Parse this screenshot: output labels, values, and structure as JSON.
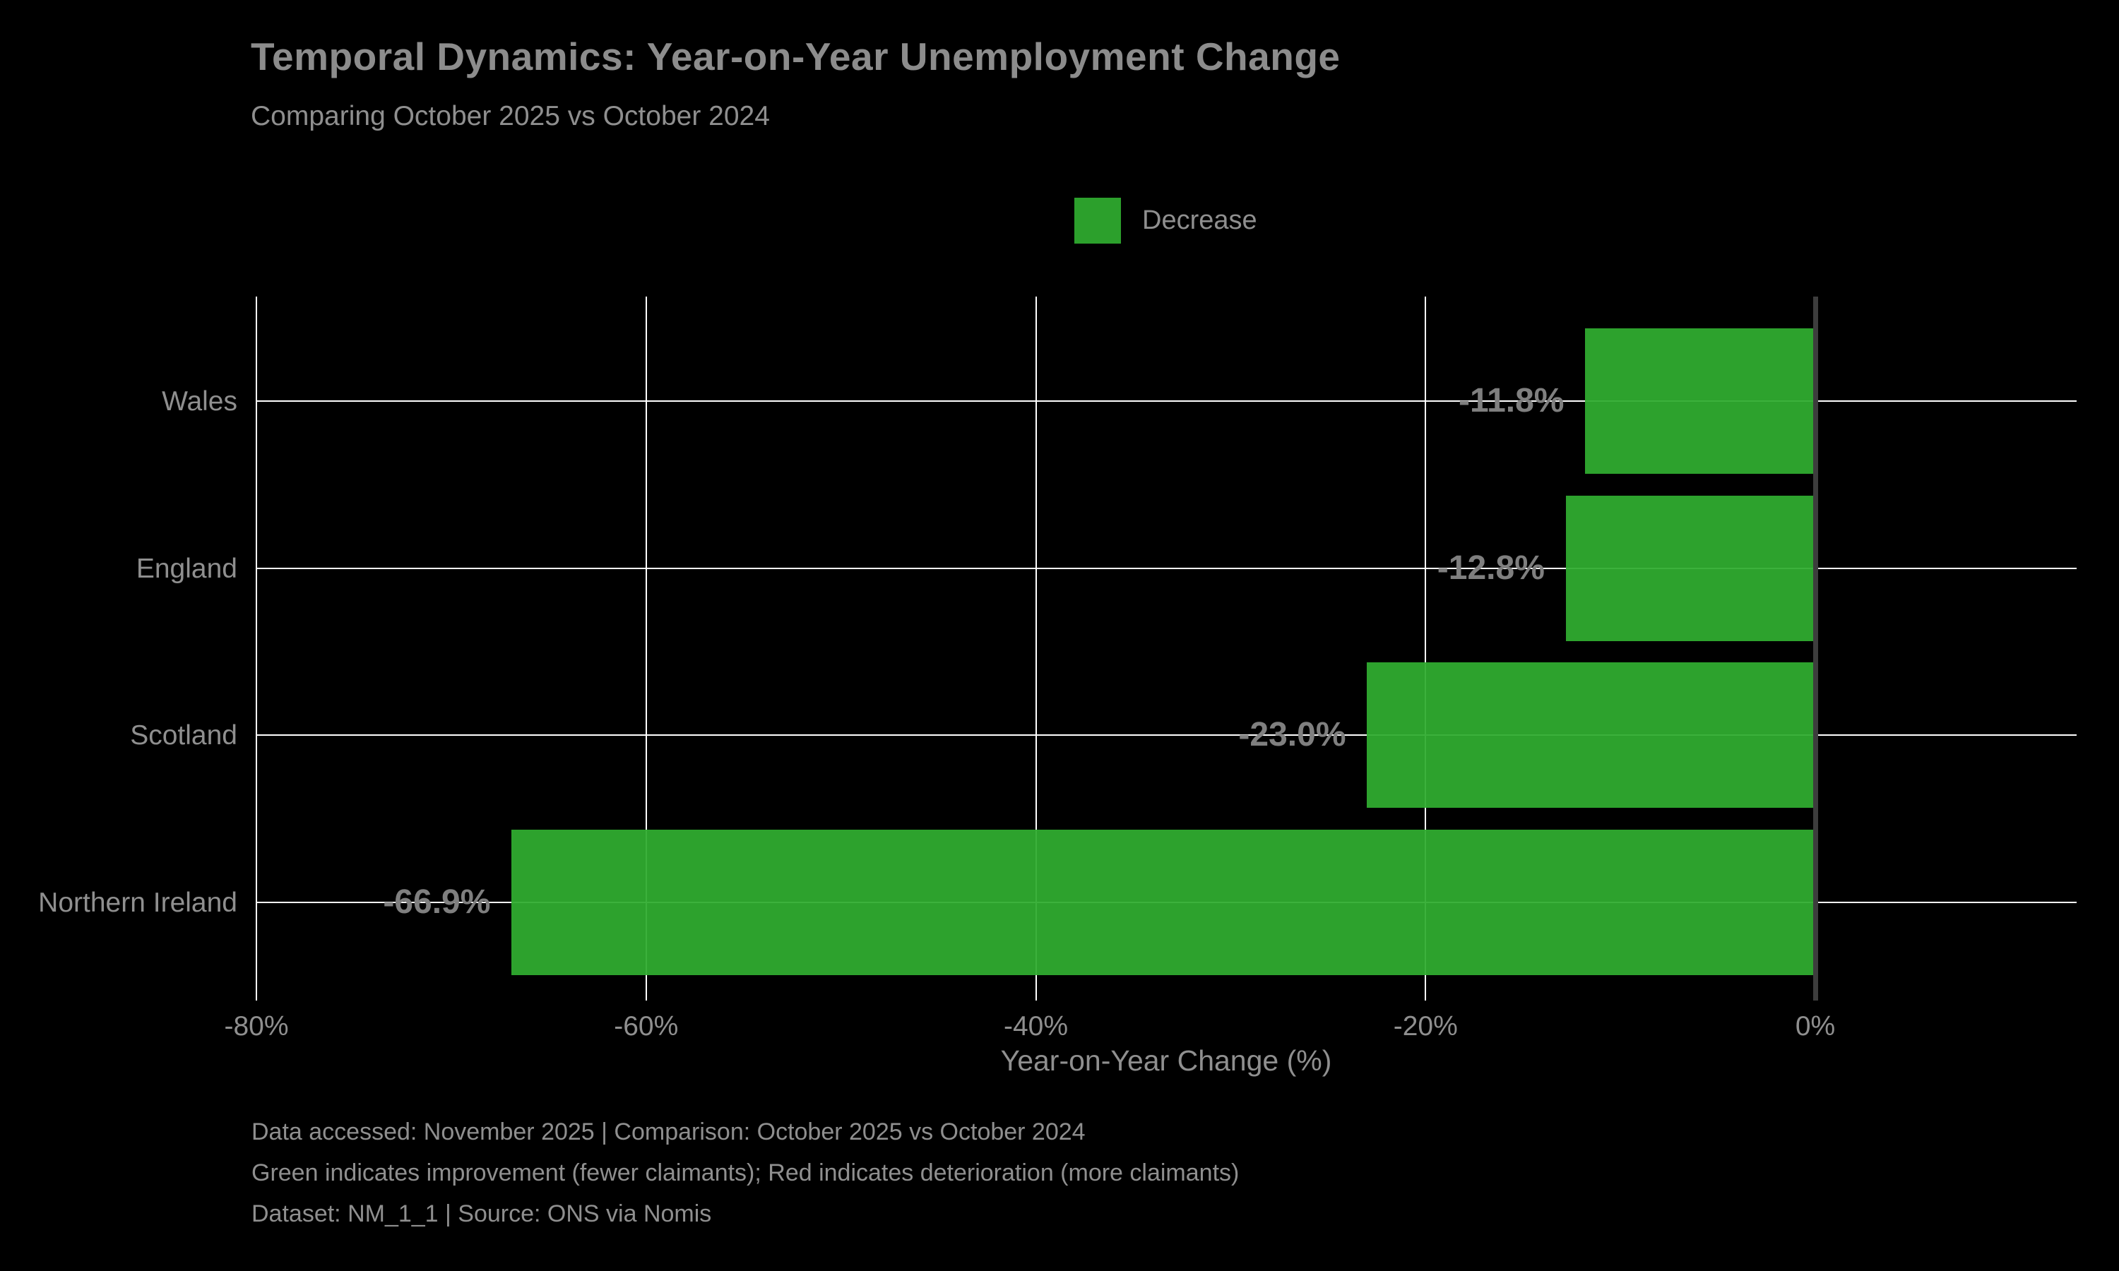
{
  "title": "Temporal Dynamics: Year-on-Year Unemployment Change",
  "subtitle": "Comparing October 2025 vs October 2024",
  "legend": {
    "label": "Decrease",
    "color": "#2ca02c"
  },
  "chart_data": {
    "type": "bar",
    "orientation": "horizontal",
    "title": "Temporal Dynamics: Year-on-Year Unemployment Change",
    "subtitle": "Comparing October 2025 vs October 2024",
    "categories": [
      "Wales",
      "England",
      "Scotland",
      "Northern Ireland"
    ],
    "values": [
      -11.8,
      -12.8,
      -23.0,
      -66.9
    ],
    "value_labels": [
      "-11.8%",
      "-12.8%",
      "-23.0%",
      "-66.9%"
    ],
    "bar_color": "#2ca02c",
    "xlabel": "Year-on-Year Change (%)",
    "ylabel": "",
    "xlim": [
      -80,
      13.4
    ],
    "xtick_values": [
      -80,
      -60,
      -40,
      -20,
      0
    ],
    "xtick_labels": [
      "-80%",
      "-60%",
      "-40%",
      "-20%",
      "0%"
    ],
    "grid": true,
    "legend_entries": [
      "Decrease"
    ],
    "legend_position": "top-center",
    "background": "#000000"
  },
  "footer": {
    "line1": "Data accessed: November 2025 | Comparison: October 2025 vs October 2024",
    "line2": "Green indicates improvement (fewer claimants); Red indicates deterioration (more claimants)",
    "line3": "Dataset: NM_1_1 | Source: ONS via Nomis"
  }
}
